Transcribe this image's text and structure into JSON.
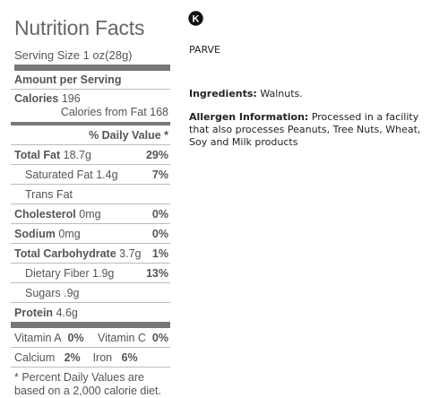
{
  "label": {
    "title": "Nutrition Facts",
    "serving_size": "Serving Size 1 oz(28g)",
    "amount_per_serving": "Amount per Serving",
    "calories_label": "Calories",
    "calories_value": "196",
    "calories_from_fat": "Calories from Fat 168",
    "dv_header": "% Daily Value *",
    "rows": [
      {
        "label": "Total Fat",
        "amount": "18.7g",
        "dv": "29%",
        "bold": true,
        "indent": false
      },
      {
        "label": "Saturated Fat",
        "amount": "1.4g",
        "dv": "7%",
        "bold": false,
        "indent": true
      },
      {
        "label": "Trans Fat",
        "amount": "",
        "dv": "",
        "bold": false,
        "indent": true
      },
      {
        "label": "Cholesterol",
        "amount": "0mg",
        "dv": "0%",
        "bold": true,
        "indent": false
      },
      {
        "label": "Sodium",
        "amount": "0mg",
        "dv": "0%",
        "bold": true,
        "indent": false
      },
      {
        "label": "Total Carbohydrate",
        "amount": "3.7g",
        "dv": "1%",
        "bold": true,
        "indent": false
      },
      {
        "label": "Dietary Fiber",
        "amount": "1.9g",
        "dv": "13%",
        "bold": false,
        "indent": true
      },
      {
        "label": "Sugars",
        "amount": ".9g",
        "dv": "",
        "bold": false,
        "indent": true
      },
      {
        "label": "Protein",
        "amount": "4.6g",
        "dv": "",
        "bold": true,
        "indent": false
      }
    ],
    "vitamin_a": "Vitamin A",
    "vitamin_a_dv": "0%",
    "vitamin_c": "Vitamin C",
    "vitamin_c_dv": "0%",
    "calcium": "Calcium",
    "calcium_dv": "2%",
    "iron": "Iron",
    "iron_dv": "6%",
    "footnote": "* Percent Daily Values are based on a 2,000 calorie diet."
  },
  "kosher_symbol": {
    "icon": "kosher-k-icon",
    "letter": "K"
  },
  "parve": "PARVE",
  "ingredients": {
    "label": "Ingredients:",
    "text": " Walnuts."
  },
  "allergen": {
    "label": "Allergen Information:",
    "text": " Processed in a facility that also processes Peanuts, Tree Nuts, Wheat, Soy and Milk products"
  }
}
